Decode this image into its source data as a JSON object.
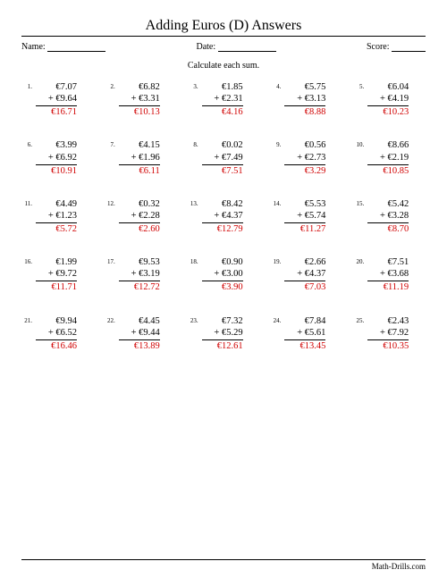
{
  "title": "Adding Euros (D) Answers",
  "header": {
    "name_label": "Name:",
    "date_label": "Date:",
    "score_label": "Score:"
  },
  "instruction": "Calculate each sum.",
  "footer_site": "Math-Drills.com",
  "style": {
    "answer_color": "#d00000",
    "text_color": "#000000",
    "columns": 5,
    "rows": 5
  },
  "problems": [
    {
      "n": "1.",
      "a": "€7.07",
      "b": "+ €9.64",
      "ans": "€16.71"
    },
    {
      "n": "2.",
      "a": "€6.82",
      "b": "+ €3.31",
      "ans": "€10.13"
    },
    {
      "n": "3.",
      "a": "€1.85",
      "b": "+ €2.31",
      "ans": "€4.16"
    },
    {
      "n": "4.",
      "a": "€5.75",
      "b": "+ €3.13",
      "ans": "€8.88"
    },
    {
      "n": "5.",
      "a": "€6.04",
      "b": "+ €4.19",
      "ans": "€10.23"
    },
    {
      "n": "6.",
      "a": "€3.99",
      "b": "+ €6.92",
      "ans": "€10.91"
    },
    {
      "n": "7.",
      "a": "€4.15",
      "b": "+ €1.96",
      "ans": "€6.11"
    },
    {
      "n": "8.",
      "a": "€0.02",
      "b": "+ €7.49",
      "ans": "€7.51"
    },
    {
      "n": "9.",
      "a": "€0.56",
      "b": "+ €2.73",
      "ans": "€3.29"
    },
    {
      "n": "10.",
      "a": "€8.66",
      "b": "+ €2.19",
      "ans": "€10.85"
    },
    {
      "n": "11.",
      "a": "€4.49",
      "b": "+ €1.23",
      "ans": "€5.72"
    },
    {
      "n": "12.",
      "a": "€0.32",
      "b": "+ €2.28",
      "ans": "€2.60"
    },
    {
      "n": "13.",
      "a": "€8.42",
      "b": "+ €4.37",
      "ans": "€12.79"
    },
    {
      "n": "14.",
      "a": "€5.53",
      "b": "+ €5.74",
      "ans": "€11.27"
    },
    {
      "n": "15.",
      "a": "€5.42",
      "b": "+ €3.28",
      "ans": "€8.70"
    },
    {
      "n": "16.",
      "a": "€1.99",
      "b": "+ €9.72",
      "ans": "€11.71"
    },
    {
      "n": "17.",
      "a": "€9.53",
      "b": "+ €3.19",
      "ans": "€12.72"
    },
    {
      "n": "18.",
      "a": "€0.90",
      "b": "+ €3.00",
      "ans": "€3.90"
    },
    {
      "n": "19.",
      "a": "€2.66",
      "b": "+ €4.37",
      "ans": "€7.03"
    },
    {
      "n": "20.",
      "a": "€7.51",
      "b": "+ €3.68",
      "ans": "€11.19"
    },
    {
      "n": "21.",
      "a": "€9.94",
      "b": "+ €6.52",
      "ans": "€16.46"
    },
    {
      "n": "22.",
      "a": "€4.45",
      "b": "+ €9.44",
      "ans": "€13.89"
    },
    {
      "n": "23.",
      "a": "€7.32",
      "b": "+ €5.29",
      "ans": "€12.61"
    },
    {
      "n": "24.",
      "a": "€7.84",
      "b": "+ €5.61",
      "ans": "€13.45"
    },
    {
      "n": "25.",
      "a": "€2.43",
      "b": "+ €7.92",
      "ans": "€10.35"
    }
  ]
}
